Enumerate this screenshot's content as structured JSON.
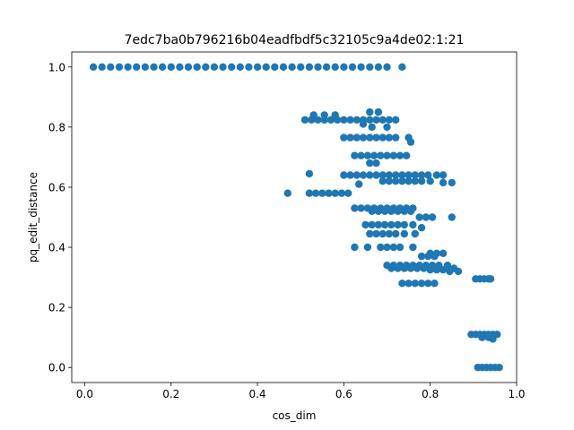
{
  "chart_data": {
    "type": "scatter",
    "title": "7edc7ba0b796216b04eadfbdf5c32105c9a4de02:1:21",
    "xlabel": "cos_dim",
    "ylabel": "pq_edit_distance",
    "xlim": [
      -0.03,
      1.0
    ],
    "ylim": [
      -0.05,
      1.05
    ],
    "xticks": [
      0.0,
      0.2,
      0.4,
      0.6,
      0.8,
      1.0
    ],
    "yticks": [
      0.0,
      0.2,
      0.4,
      0.6,
      0.8,
      1.0
    ],
    "xtick_labels": [
      "0.0",
      "0.2",
      "0.4",
      "0.6",
      "0.8",
      "1.0"
    ],
    "ytick_labels": [
      "0.0",
      "0.2",
      "0.4",
      "0.6",
      "0.8",
      "1.0"
    ],
    "marker_color": "#1f77b4",
    "grid": false,
    "series": [
      {
        "x": [
          0.02,
          0.04,
          0.06,
          0.08,
          0.1,
          0.12,
          0.14,
          0.16,
          0.18,
          0.2,
          0.22,
          0.24,
          0.26,
          0.28,
          0.3,
          0.32,
          0.34,
          0.36,
          0.38,
          0.4,
          0.42,
          0.44,
          0.46,
          0.48,
          0.5,
          0.52,
          0.54,
          0.56,
          0.58,
          0.6,
          0.62,
          0.64,
          0.66,
          0.68,
          0.7,
          0.735,
          0.51,
          0.525,
          0.54,
          0.555,
          0.57,
          0.585,
          0.6,
          0.615,
          0.63,
          0.645,
          0.66,
          0.675,
          0.69,
          0.705,
          0.72,
          0.53,
          0.555,
          0.58,
          0.645,
          0.665,
          0.7,
          0.66,
          0.68,
          0.6,
          0.615,
          0.63,
          0.645,
          0.66,
          0.675,
          0.69,
          0.705,
          0.72,
          0.75,
          0.755,
          0.625,
          0.64,
          0.655,
          0.67,
          0.685,
          0.7,
          0.715,
          0.73,
          0.745,
          0.66,
          0.675,
          0.6,
          0.615,
          0.63,
          0.645,
          0.66,
          0.675,
          0.69,
          0.705,
          0.72,
          0.735,
          0.75,
          0.765,
          0.78,
          0.795,
          0.815,
          0.83,
          0.52,
          0.69,
          0.705,
          0.72,
          0.735,
          0.75,
          0.765,
          0.78,
          0.8,
          0.83,
          0.85,
          0.635,
          0.47,
          0.52,
          0.535,
          0.55,
          0.565,
          0.58,
          0.595,
          0.61,
          0.625,
          0.64,
          0.655,
          0.67,
          0.685,
          0.7,
          0.715,
          0.73,
          0.745,
          0.76,
          0.665,
          0.68,
          0.695,
          0.71,
          0.725,
          0.74,
          0.755,
          0.775,
          0.79,
          0.805,
          0.85,
          0.65,
          0.665,
          0.68,
          0.695,
          0.71,
          0.725,
          0.74,
          0.76,
          0.78,
          0.66,
          0.675,
          0.69,
          0.705,
          0.72,
          0.74,
          0.765,
          0.625,
          0.655,
          0.685,
          0.7,
          0.715,
          0.73,
          0.76,
          0.8,
          0.815,
          0.83,
          0.78,
          0.795,
          0.81,
          0.7,
          0.715,
          0.73,
          0.745,
          0.76,
          0.775,
          0.79,
          0.805,
          0.82,
          0.84,
          0.855,
          0.865,
          0.71,
          0.725,
          0.74,
          0.755,
          0.77,
          0.785,
          0.8,
          0.815,
          0.83,
          0.845,
          0.735,
          0.75,
          0.765,
          0.78,
          0.795,
          0.81,
          0.905,
          0.915,
          0.925,
          0.935,
          0.94,
          0.895,
          0.905,
          0.915,
          0.925,
          0.935,
          0.945,
          0.955,
          0.92,
          0.935,
          0.945,
          0.91,
          0.92,
          0.93,
          0.94,
          0.95,
          0.96
        ],
        "y": [
          1.0,
          1.0,
          1.0,
          1.0,
          1.0,
          1.0,
          1.0,
          1.0,
          1.0,
          1.0,
          1.0,
          1.0,
          1.0,
          1.0,
          1.0,
          1.0,
          1.0,
          1.0,
          1.0,
          1.0,
          1.0,
          1.0,
          1.0,
          1.0,
          1.0,
          1.0,
          1.0,
          1.0,
          1.0,
          1.0,
          1.0,
          1.0,
          1.0,
          1.0,
          1.0,
          1.0,
          0.824,
          0.824,
          0.824,
          0.824,
          0.824,
          0.824,
          0.824,
          0.824,
          0.824,
          0.824,
          0.824,
          0.824,
          0.824,
          0.824,
          0.824,
          0.84,
          0.84,
          0.84,
          0.81,
          0.8,
          0.8,
          0.85,
          0.85,
          0.765,
          0.765,
          0.765,
          0.765,
          0.765,
          0.765,
          0.765,
          0.765,
          0.765,
          0.765,
          0.75,
          0.705,
          0.705,
          0.705,
          0.705,
          0.705,
          0.705,
          0.705,
          0.705,
          0.705,
          0.68,
          0.68,
          0.64,
          0.64,
          0.64,
          0.64,
          0.64,
          0.64,
          0.64,
          0.64,
          0.64,
          0.64,
          0.64,
          0.64,
          0.64,
          0.64,
          0.64,
          0.64,
          0.645,
          0.62,
          0.62,
          0.62,
          0.62,
          0.62,
          0.62,
          0.62,
          0.62,
          0.615,
          0.615,
          0.61,
          0.58,
          0.58,
          0.58,
          0.58,
          0.58,
          0.58,
          0.58,
          0.58,
          0.53,
          0.53,
          0.53,
          0.53,
          0.53,
          0.53,
          0.53,
          0.53,
          0.53,
          0.53,
          0.52,
          0.52,
          0.52,
          0.52,
          0.52,
          0.52,
          0.52,
          0.5,
          0.5,
          0.5,
          0.5,
          0.475,
          0.475,
          0.475,
          0.475,
          0.475,
          0.475,
          0.475,
          0.475,
          0.465,
          0.445,
          0.445,
          0.445,
          0.445,
          0.445,
          0.445,
          0.445,
          0.4,
          0.4,
          0.4,
          0.4,
          0.4,
          0.4,
          0.4,
          0.38,
          0.38,
          0.38,
          0.37,
          0.37,
          0.37,
          0.34,
          0.34,
          0.34,
          0.34,
          0.34,
          0.34,
          0.34,
          0.34,
          0.34,
          0.34,
          0.33,
          0.32,
          0.33,
          0.33,
          0.33,
          0.33,
          0.33,
          0.33,
          0.325,
          0.325,
          0.325,
          0.32,
          0.28,
          0.28,
          0.28,
          0.28,
          0.28,
          0.28,
          0.295,
          0.295,
          0.295,
          0.295,
          0.295,
          0.11,
          0.11,
          0.11,
          0.11,
          0.11,
          0.11,
          0.11,
          0.1,
          0.1,
          0.095,
          0.0,
          0.0,
          0.0,
          0.0,
          0.0,
          0.0
        ]
      }
    ]
  }
}
